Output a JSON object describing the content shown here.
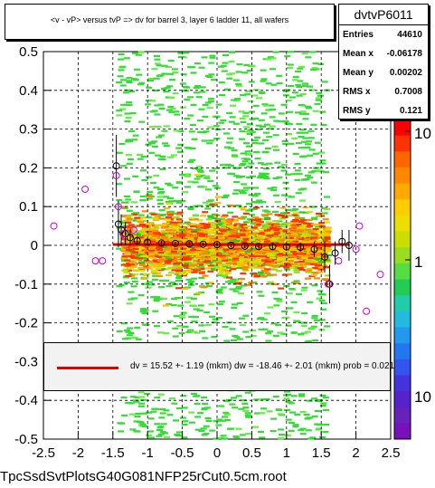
{
  "chart_data": {
    "type": "scatter",
    "title": "<v - vP>     versus  tvP =>  dv for barrel 3, layer 6 ladder 11, all wafers",
    "xlim": [
      -2.5,
      2.5
    ],
    "ylim": [
      -0.5,
      0.5
    ],
    "x_ticks": [
      "-2.5",
      "-2",
      "-1.5",
      "-1",
      "-0.5",
      "0",
      "0.5",
      "1",
      "1.5",
      "2",
      "2.5"
    ],
    "y_ticks": [
      "-0.5",
      "-0.4",
      "-0.3",
      "-0.2",
      "-0.1",
      "0",
      "0.1",
      "0.2",
      "0.3",
      "0.4",
      "0.5"
    ],
    "z_scale": "log",
    "z_ticks": [
      "1",
      "10"
    ],
    "grid": true,
    "stats": {
      "name": "dvtvP6011",
      "rows": [
        {
          "label": "Entries",
          "value": "44610"
        },
        {
          "label": "Mean x",
          "value": "-0.06178"
        },
        {
          "label": "Mean y",
          "value": "0.00202"
        },
        {
          "label": "RMS x",
          "value": "0.7008"
        },
        {
          "label": "RMS y",
          "value": "0.121"
        }
      ]
    },
    "fit": {
      "text": "dv =   15.52 +-  1.19 (mkm) dw =  -18.46 +-  2.01 (mkm) prob = 0.021",
      "color": "#e10000",
      "line_y": 0.002,
      "x_range": [
        -1.5,
        1.9
      ]
    },
    "profile_points": [
      {
        "x": -1.45,
        "y": 0.205,
        "err": 0.08
      },
      {
        "x": -1.42,
        "y": 0.055,
        "err": 0.06
      },
      {
        "x": -1.38,
        "y": 0.04,
        "err": 0.04
      },
      {
        "x": -1.32,
        "y": 0.03,
        "err": 0.03
      },
      {
        "x": -1.25,
        "y": 0.02,
        "err": 0.02
      },
      {
        "x": -1.15,
        "y": 0.012,
        "err": 0.01
      },
      {
        "x": -1.0,
        "y": 0.008,
        "err": 0.008
      },
      {
        "x": -0.8,
        "y": 0.006,
        "err": 0.006
      },
      {
        "x": -0.6,
        "y": 0.005,
        "err": 0.005
      },
      {
        "x": -0.4,
        "y": 0.004,
        "err": 0.005
      },
      {
        "x": -0.2,
        "y": 0.003,
        "err": 0.005
      },
      {
        "x": 0.0,
        "y": 0.002,
        "err": 0.005
      },
      {
        "x": 0.2,
        "y": 0.0,
        "err": 0.005
      },
      {
        "x": 0.4,
        "y": -0.002,
        "err": 0.005
      },
      {
        "x": 0.6,
        "y": -0.003,
        "err": 0.006
      },
      {
        "x": 0.8,
        "y": -0.003,
        "err": 0.007
      },
      {
        "x": 1.0,
        "y": -0.004,
        "err": 0.008
      },
      {
        "x": 1.2,
        "y": -0.005,
        "err": 0.012
      },
      {
        "x": 1.4,
        "y": -0.01,
        "err": 0.02
      },
      {
        "x": 1.55,
        "y": -0.03,
        "err": 0.04
      },
      {
        "x": 1.62,
        "y": -0.1,
        "err": 0.05
      },
      {
        "x": 1.7,
        "y": -0.02,
        "err": 0.03
      },
      {
        "x": 1.8,
        "y": 0.01,
        "err": 0.03
      },
      {
        "x": 1.9,
        "y": 0.0,
        "err": 0.04
      }
    ],
    "mean_points": [
      {
        "x": -2.35,
        "y": 0.05
      },
      {
        "x": -1.9,
        "y": 0.145
      },
      {
        "x": -1.75,
        "y": -0.04
      },
      {
        "x": -1.65,
        "y": -0.04
      },
      {
        "x": -1.45,
        "y": 0.18
      },
      {
        "x": -1.42,
        "y": 0.1
      },
      {
        "x": -1.35,
        "y": 0.03
      },
      {
        "x": -1.2,
        "y": 0.04
      },
      {
        "x": 1.6,
        "y": -0.1
      },
      {
        "x": 1.75,
        "y": -0.04
      },
      {
        "x": 2.0,
        "y": -0.01
      },
      {
        "x": 2.05,
        "y": 0.05
      },
      {
        "x": 2.15,
        "y": -0.17
      },
      {
        "x": 2.35,
        "y": -0.075
      }
    ],
    "footer": "TpcSsdSvtPlotsG40G081NFP25rCut0.5cm.root"
  }
}
